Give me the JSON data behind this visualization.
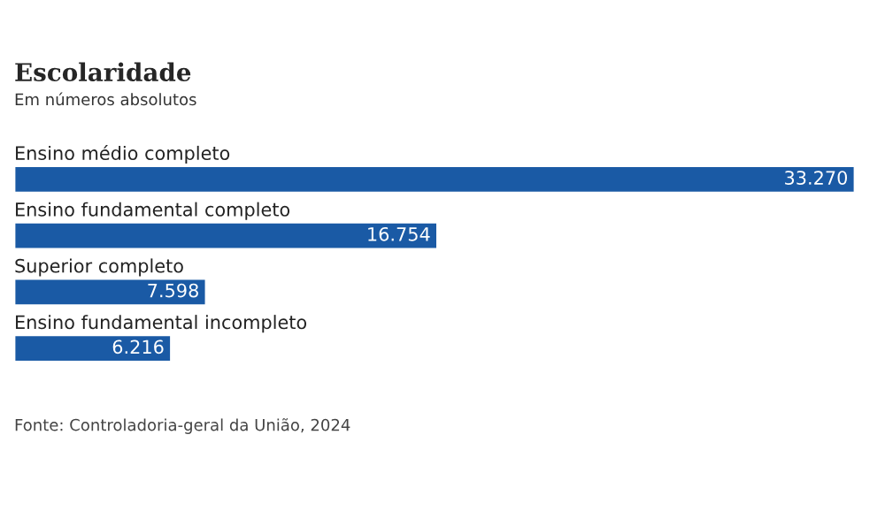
{
  "chart_data": {
    "type": "bar",
    "orientation": "horizontal",
    "title": "Escolaridade",
    "subtitle": "Em números absolutos",
    "categories": [
      "Ensino médio completo",
      "Ensino fundamental completo",
      "Superior completo",
      "Ensino fundamental incompleto"
    ],
    "values": [
      33270,
      16754,
      7598,
      6216
    ],
    "value_labels": [
      "33.270",
      "16.754",
      "7.598",
      "6.216"
    ],
    "color": "#1a5aa5",
    "annotations": [
      "Fonte: Controladoria-geral da União, 2024"
    ]
  }
}
